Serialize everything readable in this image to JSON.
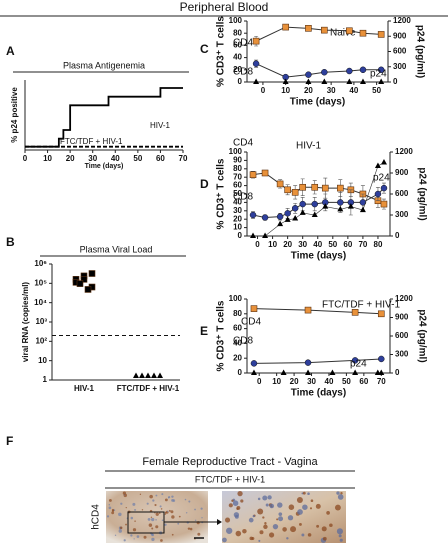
{
  "header": {
    "title": "Peripheral Blood"
  },
  "panel_labels": [
    "A",
    "B",
    "C",
    "D",
    "E",
    "F"
  ],
  "chart_data": [
    {
      "type": "line",
      "title": "Plasma Antigenemia",
      "ylabel": "% p24 positive",
      "xlabel": "Time (days)",
      "xlim": [
        0,
        70
      ],
      "xticks": [
        0,
        10,
        20,
        30,
        40,
        50,
        60,
        70
      ],
      "ylim": [
        -5,
        100
      ],
      "series": [
        {
          "name": "HIV-1",
          "color": "#000000",
          "marker": "none",
          "x": [
            0,
            15,
            15,
            17,
            17,
            20,
            20,
            37,
            37,
            60,
            60,
            70
          ],
          "values": [
            0,
            0,
            12,
            12,
            25,
            25,
            62,
            62,
            75,
            75,
            88,
            88
          ]
        },
        {
          "name": "FTC/TDF + HIV-1",
          "color": "#000000",
          "marker": "none",
          "dash": true,
          "x": [
            0,
            70
          ],
          "values": [
            0,
            0
          ]
        }
      ]
    },
    {
      "type": "scatter",
      "title": "Plasma Viral Load",
      "ylabel": "viral RNA (copies/ml)",
      "log": true,
      "categories": [
        "HIV-1",
        "FTC/TDF + HIV-1"
      ],
      "markers": [
        "square",
        "triangle"
      ],
      "color": "#000000",
      "values": [
        [
          100000,
          150000,
          200000,
          70000,
          100000,
          40000,
          60000,
          30000
        ],
        [
          1,
          1,
          1,
          1,
          1
        ]
      ],
      "threshold": 200,
      "ylim": [
        1,
        1000000
      ],
      "yticks": [
        1,
        10,
        {
          "value": 100,
          "label": "10²"
        },
        {
          "value": 1000,
          "label": "10³"
        },
        {
          "value": 10000,
          "label": "10⁴"
        },
        {
          "value": 100000,
          "label": "10⁵"
        },
        {
          "value": 1000000,
          "label": "10⁶"
        }
      ]
    },
    {
      "type": "line",
      "annotation": "Naive",
      "ylabel": "% CD3⁺ T cells",
      "y2label": "p24 (pg/ml)",
      "xlabel": "Time (days)",
      "xlim": [
        -7,
        55
      ],
      "xticks": [
        0,
        10,
        20,
        30,
        40,
        50
      ],
      "ylim": [
        0,
        100
      ],
      "yticks": [
        0,
        20,
        40,
        60,
        80,
        100
      ],
      "y2lim": [
        0,
        1200
      ],
      "y2ticks": [
        0,
        300,
        600,
        900,
        1200
      ],
      "series": [
        {
          "name": "CD4",
          "color": "#e8913a",
          "marker": "square",
          "x": [
            -3,
            10,
            20,
            27,
            38,
            44,
            52
          ],
          "values": [
            67,
            90,
            88,
            85,
            84,
            80,
            78
          ],
          "errors": [
            8,
            2,
            3,
            4,
            3,
            2,
            2
          ]
        },
        {
          "name": "CD8",
          "color": "#2e3f9c",
          "marker": "circle",
          "x": [
            -3,
            10,
            20,
            27,
            38,
            44,
            52
          ],
          "values": [
            30,
            8,
            12,
            16,
            18,
            20,
            20
          ],
          "errors": [
            6,
            2,
            3,
            3,
            2,
            2,
            2
          ]
        },
        {
          "name": "p24",
          "color": "#000000",
          "marker": "triangle",
          "line": false,
          "axis": "y2",
          "x": [
            -3,
            10,
            20,
            27,
            38,
            44,
            52
          ],
          "values": [
            0,
            0,
            0,
            0,
            0,
            0,
            0
          ]
        }
      ]
    },
    {
      "type": "line",
      "annotation": "HIV-1",
      "ylabel": "% CD3⁺ T cells",
      "y2label": "p24 (pg/ml)",
      "xlabel": "Time (days)",
      "xlim": [
        -7,
        88
      ],
      "xticks": [
        0,
        10,
        20,
        30,
        40,
        50,
        60,
        70,
        80
      ],
      "ylim": [
        0,
        100
      ],
      "yticks": [
        0,
        10,
        20,
        30,
        40,
        50,
        60,
        70,
        80,
        90,
        100
      ],
      "y2lim": [
        0,
        1200
      ],
      "y2ticks": [
        0,
        300,
        600,
        900,
        1200
      ],
      "series": [
        {
          "name": "CD4",
          "color": "#e8913a",
          "marker": "square",
          "x": [
            -3,
            5,
            15,
            20,
            25,
            30,
            38,
            45,
            55,
            62,
            70,
            80,
            84
          ],
          "values": [
            73,
            75,
            62,
            55,
            52,
            58,
            58,
            57,
            57,
            55,
            50,
            42,
            38
          ],
          "errors": [
            4,
            3,
            5,
            6,
            8,
            10,
            8,
            12,
            10,
            8,
            10,
            8,
            6
          ]
        },
        {
          "name": "CD8",
          "color": "#2e3f9c",
          "marker": "circle",
          "x": [
            -3,
            5,
            15,
            20,
            25,
            30,
            38,
            45,
            55,
            62,
            70,
            80,
            84
          ],
          "values": [
            25,
            22,
            23,
            27,
            33,
            38,
            38,
            40,
            40,
            40,
            40,
            50,
            57
          ],
          "errors": [
            4,
            3,
            4,
            6,
            6,
            8,
            8,
            10,
            12,
            15,
            10,
            8,
            6
          ]
        },
        {
          "name": "p24",
          "color": "#000000",
          "marker": "triangle",
          "axis": "y2",
          "x": [
            -3,
            5,
            15,
            20,
            25,
            30,
            38,
            45,
            55,
            62,
            70,
            80,
            84
          ],
          "values": [
            0,
            0,
            170,
            230,
            250,
            330,
            300,
            420,
            380,
            420,
            370,
            1000,
            1050
          ]
        }
      ]
    },
    {
      "type": "line",
      "annotation": "FTC/TDF + HIV-1",
      "ylabel": "% CD3⁺ T cells",
      "y2label": "p24 (pg/ml)",
      "xlabel": "Time (days)",
      "xlim": [
        -7,
        75
      ],
      "xticks": [
        0,
        10,
        20,
        30,
        40,
        50,
        60,
        70
      ],
      "ylim": [
        0,
        100
      ],
      "yticks": [
        0,
        20,
        40,
        60,
        80,
        100
      ],
      "y2lim": [
        0,
        1200
      ],
      "y2ticks": [
        0,
        300,
        600,
        900,
        1200
      ],
      "series": [
        {
          "name": "CD4",
          "color": "#e8913a",
          "marker": "square",
          "x": [
            -3,
            28,
            55,
            70
          ],
          "values": [
            87,
            85,
            82,
            80
          ]
        },
        {
          "name": "CD8",
          "color": "#2e3f9c",
          "marker": "circle",
          "x": [
            -3,
            28,
            55,
            70
          ],
          "values": [
            13,
            14,
            17,
            19
          ]
        },
        {
          "name": "p24",
          "color": "#000000",
          "marker": "triangle",
          "line": false,
          "axis": "y2",
          "x": [
            -3,
            14,
            28,
            42,
            55,
            68,
            70
          ],
          "values": [
            0,
            0,
            0,
            0,
            0,
            0,
            0
          ]
        }
      ]
    }
  ],
  "panel_f": {
    "title": "Female Reproductive Tract - Vagina",
    "subtitle": "FTC/TDF + HIV-1",
    "stain": "hCD4"
  }
}
